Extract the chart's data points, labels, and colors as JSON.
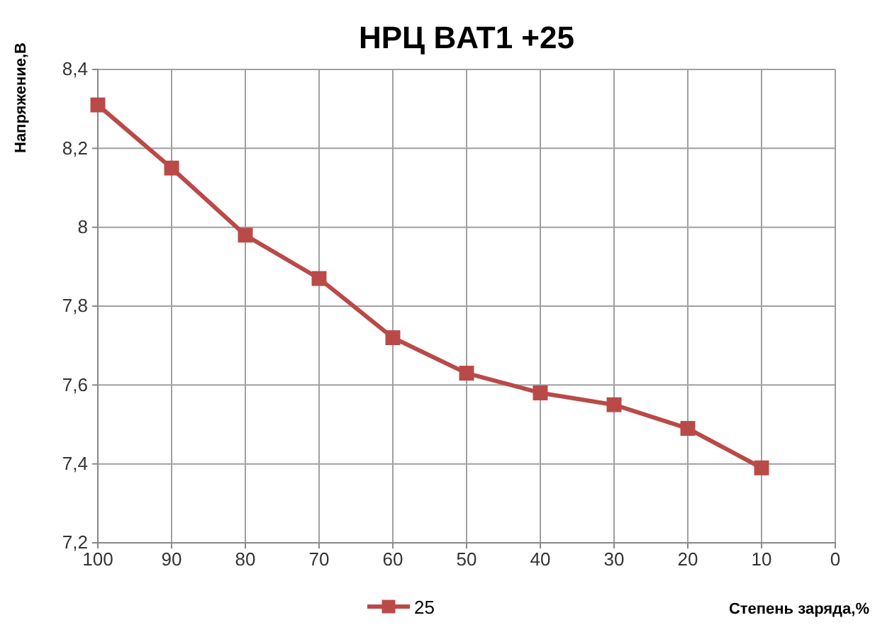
{
  "chart_data": {
    "type": "line",
    "title": "НРЦ BAT1 +25",
    "xlabel": "Степень заряда,%",
    "ylabel": "Напряжение,В",
    "x": [
      100,
      90,
      80,
      70,
      60,
      50,
      40,
      30,
      20,
      10
    ],
    "series": [
      {
        "name": "25",
        "color": "#b94a48",
        "values": [
          8.31,
          8.15,
          7.98,
          7.87,
          7.72,
          7.63,
          7.58,
          7.55,
          7.49,
          7.39
        ]
      }
    ],
    "xlim": [
      100,
      0
    ],
    "xticks": [
      100,
      90,
      80,
      70,
      60,
      50,
      40,
      30,
      20,
      10,
      0
    ],
    "ylim": [
      7.2,
      8.4
    ],
    "yticks": [
      {
        "value": 7.2,
        "label": "7,2"
      },
      {
        "value": 7.4,
        "label": "7,4"
      },
      {
        "value": 7.6,
        "label": "7,6"
      },
      {
        "value": 7.8,
        "label": "7,8"
      },
      8,
      {
        "value": 8.2,
        "label": "8,2"
      },
      {
        "value": 8.4,
        "label": "8,4"
      }
    ],
    "grid": true,
    "legend": "bottom",
    "marker": "square",
    "line_style": "solid"
  }
}
